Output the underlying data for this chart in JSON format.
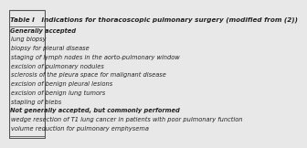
{
  "title": "Table I   Indications for thoracoscopic pulmonary surgery (modified from (2))",
  "rows": [
    {
      "text": "Generally accepted",
      "bold": true,
      "indent": false
    },
    {
      "text": "lung biopsy",
      "bold": false,
      "indent": true
    },
    {
      "text": "biopsy for pleural disease",
      "bold": false,
      "indent": true
    },
    {
      "text": "staging of lymph nodes in the aorto-pulmonary window",
      "bold": false,
      "indent": true
    },
    {
      "text": "excision of pulmonary nodules",
      "bold": false,
      "indent": true
    },
    {
      "text": "sclerosis of the pleura space for malignant disease",
      "bold": false,
      "indent": true
    },
    {
      "text": "excision of benign pleural lesions",
      "bold": false,
      "indent": true
    },
    {
      "text": "excision of benign lung tumors",
      "bold": false,
      "indent": true
    },
    {
      "text": "stapling of blebs",
      "bold": false,
      "indent": true
    },
    {
      "text": "Not generally accepted, but commonly performed",
      "bold": true,
      "indent": false
    },
    {
      "text": "wedge resection of T1 lung cancer in patients with poor pulmonary function",
      "bold": false,
      "indent": true
    },
    {
      "text": "volume reduction for pulmonary emphysema",
      "bold": false,
      "indent": true
    }
  ],
  "bg_color": "#e8e8e8",
  "border_color": "#555555",
  "title_fontsize": 5.2,
  "row_fontsize": 4.8,
  "text_color": "#222222"
}
